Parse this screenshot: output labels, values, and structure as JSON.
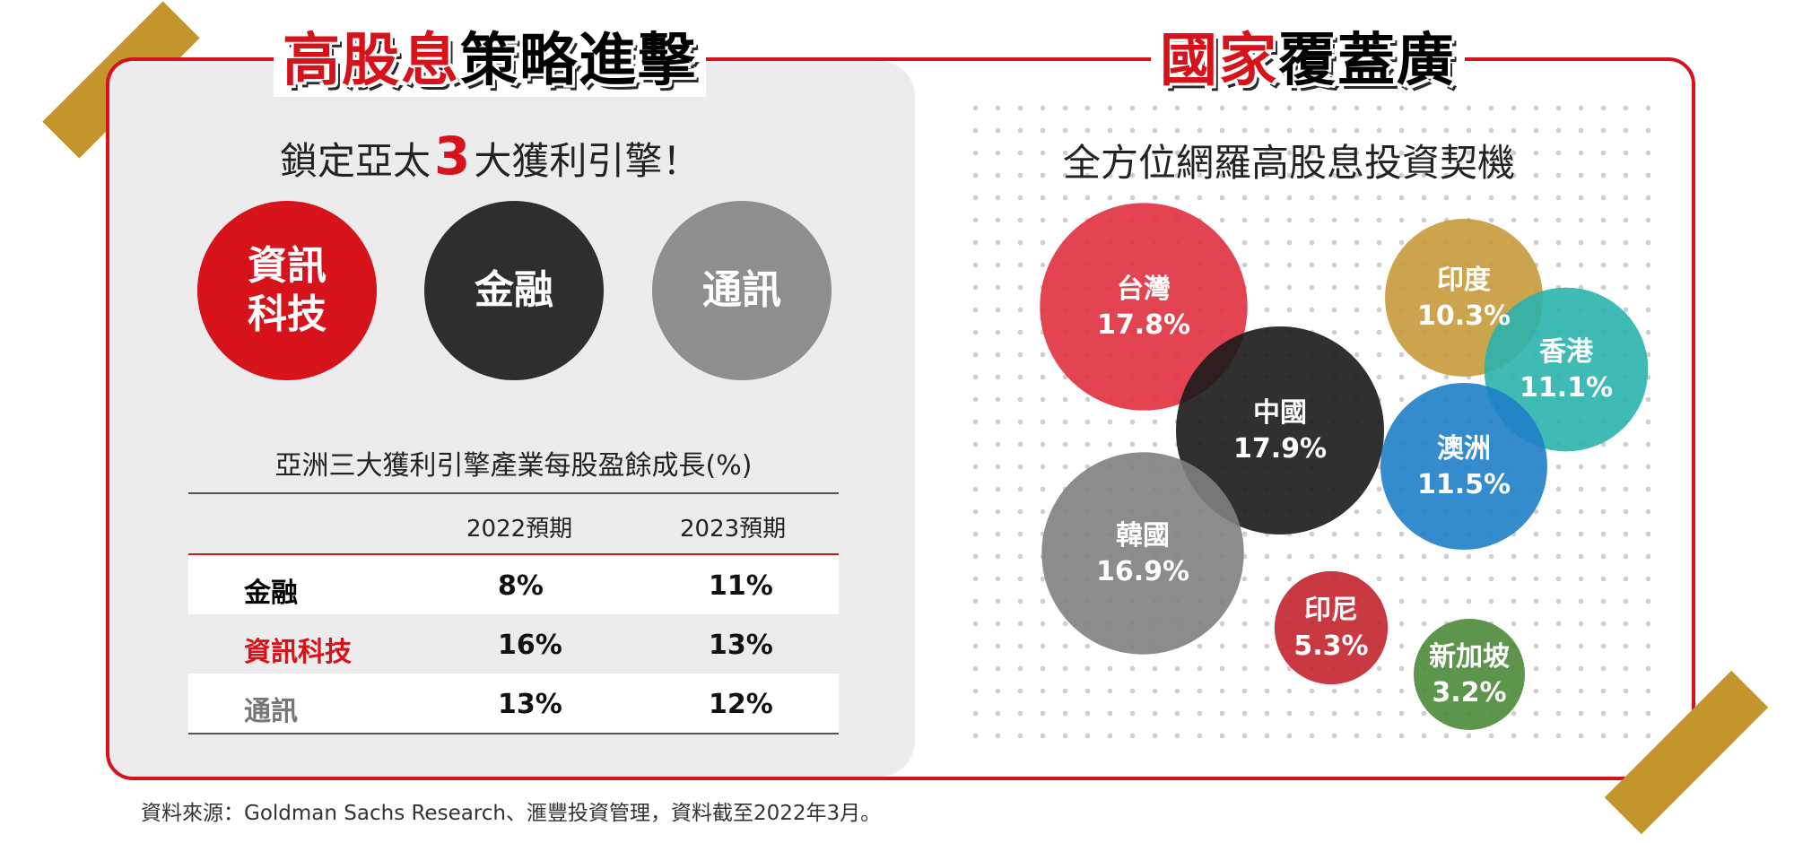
{
  "left": {
    "heading_red": "高股息",
    "heading_black": "策略進擊",
    "subtitle_pre": "鎖定亞太",
    "subtitle_num": "3",
    "subtitle_post": "大獲利引擎！",
    "engines": [
      {
        "label": "資訊\n科技",
        "color": "#d6121a"
      },
      {
        "label": "金融",
        "color": "#2e2e2e"
      },
      {
        "label": "通訊",
        "color": "#8e8e8e"
      }
    ],
    "table_title": "亞洲三大獲利引擎產業每股盈餘成長(%)",
    "table": {
      "columns": [
        "",
        "2022預期",
        "2023預期"
      ],
      "rows": [
        {
          "sector": "金融",
          "v2022": "8%",
          "v2023": "11%",
          "color": "#000000"
        },
        {
          "sector": "資訊科技",
          "v2022": "16%",
          "v2023": "13%",
          "color": "#d6121a"
        },
        {
          "sector": "通訊",
          "v2022": "13%",
          "v2023": "12%",
          "color": "#777777"
        }
      ]
    }
  },
  "right": {
    "heading_red": "國家",
    "heading_black": "覆蓋廣",
    "subtitle": "全方位網羅高股息投資契機"
  },
  "chart_data": {
    "type": "bubble",
    "series": [
      {
        "name": "台灣",
        "value": 17.8,
        "label": "17.8%",
        "color": "#e0303e"
      },
      {
        "name": "中國",
        "value": 17.9,
        "label": "17.9%",
        "color": "#1a1a1a"
      },
      {
        "name": "韓國",
        "value": 16.9,
        "label": "16.9%",
        "color": "#808080"
      },
      {
        "name": "印度",
        "value": 10.3,
        "label": "10.3%",
        "color": "#c69a3a"
      },
      {
        "name": "香港",
        "value": 11.1,
        "label": "11.1%",
        "color": "#2bb2ad"
      },
      {
        "name": "澳洲",
        "value": 11.5,
        "label": "11.5%",
        "color": "#1f80c8"
      },
      {
        "name": "印尼",
        "value": 5.3,
        "label": "5.3%",
        "color": "#c2242e"
      },
      {
        "name": "新加坡",
        "value": 3.2,
        "label": "3.2%",
        "color": "#4d8a3a"
      }
    ]
  },
  "source": "資料來源：Goldman Sachs Research、滙豐投資管理，資料截至2022年3月。"
}
